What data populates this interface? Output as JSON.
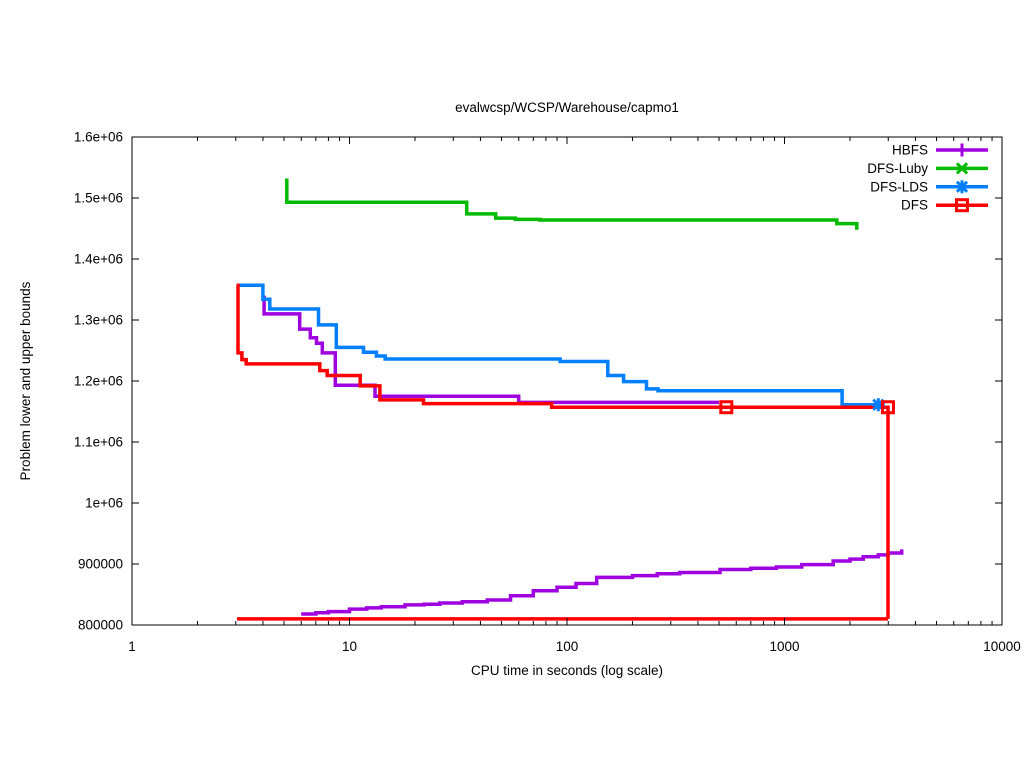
{
  "window": {
    "background": "#ffffff"
  },
  "chart_data": {
    "type": "line",
    "title": "evalwcsp/WCSP/Warehouse/capmo1",
    "xlabel": "CPU time in seconds (log scale)",
    "ylabel": "Problem lower and upper bounds",
    "x_scale": "log",
    "y_scale": "linear",
    "xlim": [
      1,
      10000
    ],
    "ylim": [
      800000,
      1600000
    ],
    "grid": false,
    "legend_position": "top-right-inside",
    "x_ticks": [
      {
        "value": 1,
        "label": "1"
      },
      {
        "value": 10,
        "label": "10"
      },
      {
        "value": 100,
        "label": "100"
      },
      {
        "value": 1000,
        "label": "1000"
      },
      {
        "value": 10000,
        "label": "10000"
      }
    ],
    "y_ticks": [
      {
        "value": 800000,
        "label": "800000"
      },
      {
        "value": 900000,
        "label": "900000"
      },
      {
        "value": 1000000,
        "label": "1e+06"
      },
      {
        "value": 1100000,
        "label": "1.1e+06"
      },
      {
        "value": 1200000,
        "label": "1.2e+06"
      },
      {
        "value": 1300000,
        "label": "1.3e+06"
      },
      {
        "value": 1400000,
        "label": "1.4e+06"
      },
      {
        "value": 1500000,
        "label": "1.5e+06"
      },
      {
        "value": 1600000,
        "label": "1.6e+06"
      }
    ],
    "series": [
      {
        "name": "HBFS",
        "color": "#a000e0",
        "marker": "plus",
        "segments": [
          [
            [
              4.0,
              1337000
            ],
            [
              4.05,
              1310000
            ],
            [
              5.9,
              1285000
            ],
            [
              6.6,
              1271000
            ],
            [
              7.05,
              1262000
            ],
            [
              7.5,
              1246000
            ],
            [
              8.6,
              1193000
            ],
            [
              13.1,
              1175000
            ],
            [
              60,
              1165000
            ],
            [
              500,
              1165000
            ]
          ],
          [
            [
              6,
              818000
            ],
            [
              7,
              820000
            ],
            [
              8,
              822000
            ],
            [
              10,
              826000
            ],
            [
              12,
              828000
            ],
            [
              14,
              830000
            ],
            [
              18,
              833000
            ],
            [
              22,
              834000
            ],
            [
              26,
              836000
            ],
            [
              33,
              838000
            ],
            [
              43,
              841000
            ],
            [
              55,
              848000
            ],
            [
              70,
              856000
            ],
            [
              90,
              862000
            ],
            [
              110,
              868000
            ],
            [
              137,
              878000
            ],
            [
              200,
              881000
            ],
            [
              260,
              884000
            ],
            [
              330,
              886000
            ],
            [
              505,
              891000
            ],
            [
              700,
              893000
            ],
            [
              918,
              895000
            ],
            [
              1200,
              899000
            ],
            [
              1675,
              905000
            ],
            [
              2000,
              908000
            ],
            [
              2300,
              912000
            ],
            [
              2700,
              915000
            ],
            [
              3000,
              918000
            ],
            [
              3460,
              924000
            ]
          ]
        ],
        "point_markers": []
      },
      {
        "name": "DFS-Luby",
        "color": "#00bb00",
        "marker": "cross",
        "segments": [
          [
            [
              5.05,
              1529000
            ],
            [
              5.15,
              1493000
            ],
            [
              34.6,
              1474000
            ],
            [
              47,
              1467000
            ],
            [
              58,
              1465000
            ],
            [
              75,
              1464000
            ],
            [
              1740,
              1458000
            ],
            [
              2150,
              1448000
            ]
          ]
        ],
        "point_markers": []
      },
      {
        "name": "DFS-LDS",
        "color": "#0080ff",
        "marker": "star",
        "segments": [
          [
            [
              3.03,
              1357000
            ],
            [
              4.0,
              1334000
            ],
            [
              4.3,
              1318000
            ],
            [
              7.2,
              1292000
            ],
            [
              8.7,
              1255000
            ],
            [
              11.6,
              1247000
            ],
            [
              13.3,
              1241000
            ],
            [
              14.6,
              1236000
            ],
            [
              93,
              1232000
            ],
            [
              154,
              1209000
            ],
            [
              182,
              1199000
            ],
            [
              232,
              1187000
            ],
            [
              262,
              1184000
            ],
            [
              1840,
              1161000
            ],
            [
              2700,
              1161000
            ]
          ]
        ],
        "point_markers": [
          [
            2700,
            1161000
          ]
        ]
      },
      {
        "name": "DFS",
        "color": "#ff0000",
        "marker": "square",
        "segments": [
          [
            [
              3.03,
              1357000
            ],
            [
              3.07,
              1246000
            ],
            [
              3.2,
              1235000
            ],
            [
              3.35,
              1228000
            ],
            [
              7.3,
              1217000
            ],
            [
              7.9,
              1209000
            ],
            [
              11.2,
              1192000
            ],
            [
              13.8,
              1169000
            ],
            [
              21.9,
              1163000
            ],
            [
              85,
              1157000
            ],
            [
              2990,
              1157000
            ],
            [
              2990,
              810000
            ]
          ],
          [
            [
              3.04,
              810000
            ],
            [
              2990,
              810000
            ]
          ]
        ],
        "point_markers": [
          [
            540,
            1157000
          ],
          [
            2990,
            1157000
          ]
        ]
      }
    ]
  }
}
